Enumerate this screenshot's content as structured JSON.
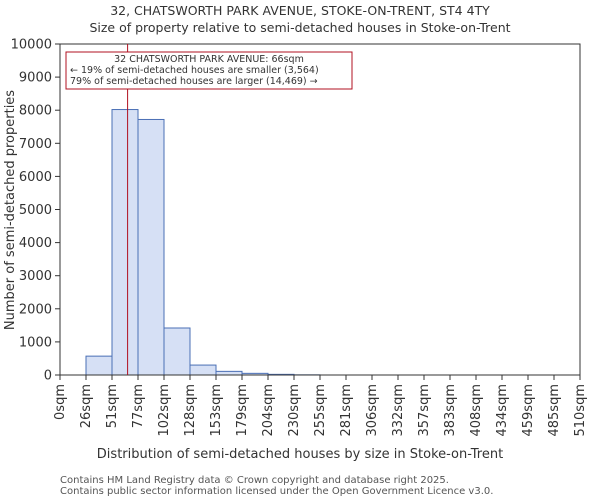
{
  "chart_data": {
    "type": "bar",
    "title": "32, CHATSWORTH PARK AVENUE, STOKE-ON-TRENT, ST4 4TY",
    "subtitle": "Size of property relative to semi-detached houses in Stoke-on-Trent",
    "xlabel": "Distribution of semi-detached houses by size in Stoke-on-Trent",
    "ylabel": "Number of semi-detached properties",
    "x_tick_labels": [
      "0sqm",
      "26sqm",
      "51sqm",
      "77sqm",
      "102sqm",
      "128sqm",
      "153sqm",
      "179sqm",
      "204sqm",
      "230sqm",
      "255sqm",
      "281sqm",
      "306sqm",
      "332sqm",
      "357sqm",
      "383sqm",
      "408sqm",
      "434sqm",
      "459sqm",
      "485sqm",
      "510sqm"
    ],
    "y_ticks": [
      0,
      1000,
      2000,
      3000,
      4000,
      5000,
      6000,
      7000,
      8000,
      9000,
      10000
    ],
    "ylim": [
      0,
      10000
    ],
    "values": [
      0,
      570,
      8020,
      7720,
      1420,
      300,
      110,
      50,
      20,
      5,
      0,
      0,
      0,
      0,
      0,
      0,
      0,
      0,
      0,
      0
    ],
    "bar_fill": "#d6e0f5",
    "bar_stroke": "#4a6fb5",
    "property_marker": {
      "bin_position": 2.6,
      "color": "#b01020"
    },
    "annotation": {
      "line1": "32 CHATSWORTH PARK AVENUE: 66sqm",
      "line2": "← 19% of semi-detached houses are smaller (3,564)",
      "line3": "79% of semi-detached houses are larger (14,469) →",
      "border_color": "#b01020"
    }
  },
  "footer": {
    "line1": "Contains HM Land Registry data © Crown copyright and database right 2025.",
    "line2": "Contains public sector information licensed under the Open Government Licence v3.0."
  }
}
